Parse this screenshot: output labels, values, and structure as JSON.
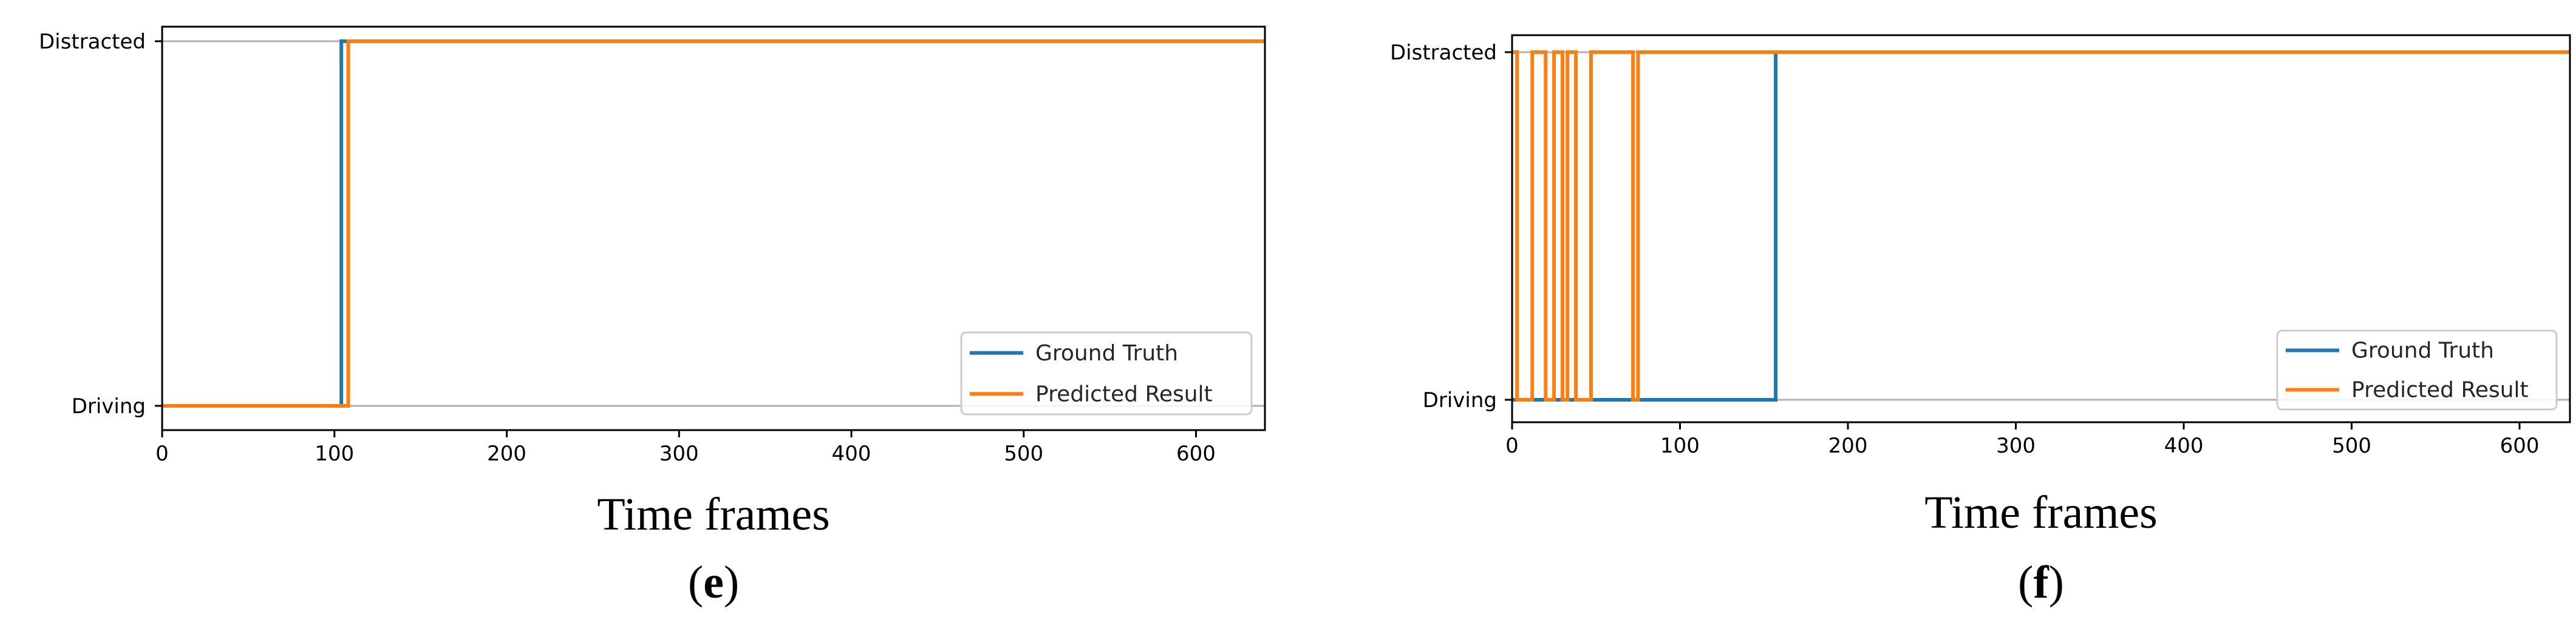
{
  "chart_data": [
    {
      "type": "line",
      "panel": "e",
      "caption_open": "(",
      "caption_letter": "e",
      "caption_close": ")",
      "xlabel": "Time frames",
      "ylabel": "",
      "xlim": [
        0,
        640
      ],
      "x_ticks": [
        0,
        100,
        200,
        300,
        400,
        500,
        600
      ],
      "y_categories": [
        "Driving",
        "Distracted"
      ],
      "ylim": [
        0,
        1
      ],
      "grid": "horizontal at category levels",
      "legend": "bottom-right",
      "series": [
        {
          "name": "Ground Truth",
          "color": "#1f77b4",
          "points": [
            [
              0,
              0
            ],
            [
              104,
              0
            ],
            [
              104,
              1
            ],
            [
              640,
              1
            ]
          ]
        },
        {
          "name": "Predicted Result",
          "color": "#ff7f0e",
          "points": [
            [
              0,
              0
            ],
            [
              108,
              0
            ],
            [
              108,
              1
            ],
            [
              640,
              1
            ]
          ]
        }
      ]
    },
    {
      "type": "line",
      "panel": "f",
      "caption_open": "(",
      "caption_letter": "f",
      "caption_close": ")",
      "xlabel": "Time frames",
      "ylabel": "",
      "xlim": [
        0,
        630
      ],
      "x_ticks": [
        0,
        100,
        200,
        300,
        400,
        500,
        600
      ],
      "y_categories": [
        "Driving",
        "Distracted"
      ],
      "ylim": [
        0,
        1
      ],
      "grid": "horizontal at category levels",
      "legend": "bottom-right",
      "series": [
        {
          "name": "Ground Truth",
          "color": "#1f77b4",
          "points": [
            [
              0,
              0
            ],
            [
              157,
              0
            ],
            [
              157,
              1
            ],
            [
              630,
              1
            ]
          ]
        },
        {
          "name": "Predicted Result",
          "color": "#ff7f0e",
          "points": [
            [
              0,
              1
            ],
            [
              3,
              1
            ],
            [
              3,
              0
            ],
            [
              12,
              0
            ],
            [
              12,
              1
            ],
            [
              20,
              1
            ],
            [
              20,
              0
            ],
            [
              25,
              0
            ],
            [
              25,
              1
            ],
            [
              30,
              1
            ],
            [
              30,
              0
            ],
            [
              33,
              0
            ],
            [
              33,
              1
            ],
            [
              38,
              1
            ],
            [
              38,
              0
            ],
            [
              47,
              0
            ],
            [
              47,
              1
            ],
            [
              72,
              1
            ],
            [
              72,
              0
            ],
            [
              75,
              0
            ],
            [
              75,
              1
            ],
            [
              630,
              1
            ]
          ]
        }
      ]
    }
  ]
}
